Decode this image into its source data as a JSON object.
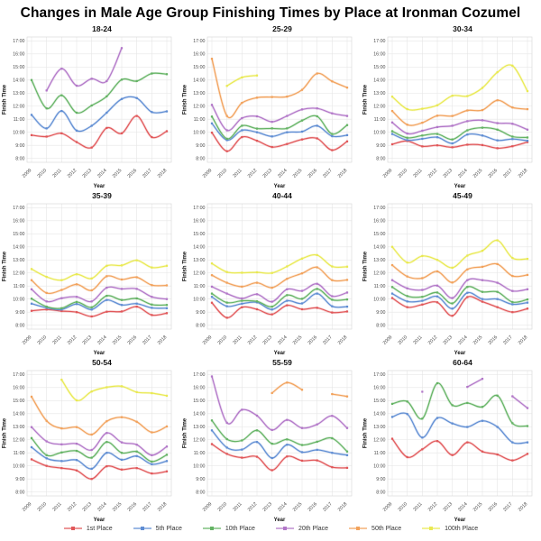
{
  "title": "Changes in Male Age Group Finishing Times by Place at Ironman Cozumel",
  "legend": [
    {
      "label": "1st Place",
      "color": "#e15759"
    },
    {
      "label": "5th Place",
      "color": "#5f8dd3"
    },
    {
      "label": "10th Place",
      "color": "#64b364"
    },
    {
      "label": "20th Place",
      "color": "#b277c8"
    },
    {
      "label": "50th Place",
      "color": "#f2a25c"
    },
    {
      "label": "100th Place",
      "color": "#e9e952"
    }
  ],
  "axes": {
    "xlabel": "Year",
    "ylabel": "Finish Time",
    "years": [
      2009,
      2010,
      2011,
      2012,
      2013,
      2014,
      2015,
      2016,
      2017,
      2018
    ],
    "ylim": [
      8,
      17
    ],
    "yticks": [
      "8:00",
      "9:00",
      "10:00",
      "11:00",
      "12:00",
      "13:00",
      "14:00",
      "15:00",
      "16:00",
      "17:00"
    ],
    "grid": "on",
    "legend_position": "bottom"
  },
  "chart_data": [
    {
      "type": "line",
      "title": "18-24",
      "xlabel": "Year",
      "ylabel": "Finish Time",
      "x": [
        2009,
        2010,
        2011,
        2012,
        2013,
        2014,
        2015,
        2016,
        2017,
        2018
      ],
      "ylim": [
        8,
        17
      ],
      "series": [
        {
          "name": "1st Place",
          "place": 0,
          "values": [
            9.78,
            9.67,
            9.92,
            9.25,
            8.83,
            10.33,
            9.92,
            11.25,
            9.63,
            10.08
          ]
        },
        {
          "name": "5th Place",
          "place": 1,
          "values": [
            11.33,
            10.3,
            11.63,
            10.13,
            10.5,
            11.5,
            12.55,
            12.62,
            11.55,
            11.6
          ]
        },
        {
          "name": "10th Place",
          "place": 2,
          "values": [
            14.0,
            11.83,
            12.83,
            11.5,
            12.05,
            12.75,
            14.03,
            13.92,
            14.5,
            14.45
          ]
        },
        {
          "name": "20th Place",
          "place": 3,
          "values": [
            null,
            13.2,
            14.87,
            13.57,
            14.1,
            13.92,
            16.45,
            null,
            null,
            null
          ]
        }
      ]
    },
    {
      "type": "line",
      "title": "25-29",
      "xlabel": "Year",
      "ylabel": "Finish Time",
      "x": [
        2009,
        2010,
        2011,
        2012,
        2013,
        2014,
        2015,
        2016,
        2017,
        2018
      ],
      "ylim": [
        8,
        17
      ],
      "series": [
        {
          "name": "1st Place",
          "place": 0,
          "values": [
            9.97,
            8.55,
            9.63,
            9.35,
            8.87,
            9.1,
            9.45,
            9.53,
            8.63,
            9.3
          ]
        },
        {
          "name": "5th Place",
          "place": 1,
          "values": [
            10.68,
            9.4,
            10.15,
            10.0,
            9.68,
            10.0,
            10.05,
            10.5,
            9.7,
            9.78
          ]
        },
        {
          "name": "10th Place",
          "place": 2,
          "values": [
            11.2,
            9.5,
            10.5,
            10.28,
            10.3,
            10.3,
            10.9,
            11.22,
            9.87,
            10.55
          ]
        },
        {
          "name": "20th Place",
          "place": 3,
          "values": [
            12.1,
            10.15,
            11.08,
            11.22,
            10.8,
            11.25,
            11.75,
            11.83,
            11.45,
            11.25
          ]
        },
        {
          "name": "50th Place",
          "place": 4,
          "values": [
            15.63,
            11.25,
            12.25,
            12.65,
            12.7,
            12.73,
            13.25,
            14.5,
            13.9,
            13.42
          ]
        },
        {
          "name": "100th Place",
          "place": 5,
          "values": [
            null,
            13.55,
            14.2,
            14.35,
            null,
            null,
            null,
            null,
            null,
            null
          ]
        }
      ]
    },
    {
      "type": "line",
      "title": "30-34",
      "xlabel": "Year",
      "ylabel": "Finish Time",
      "x": [
        2009,
        2010,
        2011,
        2012,
        2013,
        2014,
        2015,
        2016,
        2017,
        2018
      ],
      "ylim": [
        8,
        17
      ],
      "series": [
        {
          "name": "1st Place",
          "place": 0,
          "values": [
            9.08,
            9.33,
            8.92,
            9.0,
            8.85,
            9.05,
            9.02,
            8.78,
            8.93,
            9.25
          ]
        },
        {
          "name": "5th Place",
          "place": 1,
          "values": [
            9.87,
            9.4,
            9.5,
            9.62,
            9.15,
            9.83,
            9.75,
            9.38,
            9.48,
            9.35
          ]
        },
        {
          "name": "10th Place",
          "place": 2,
          "values": [
            10.08,
            9.58,
            9.75,
            9.87,
            9.45,
            10.15,
            10.35,
            10.2,
            9.67,
            9.6
          ]
        },
        {
          "name": "20th Place",
          "place": 3,
          "values": [
            10.75,
            9.9,
            10.12,
            10.4,
            10.5,
            10.85,
            10.92,
            10.7,
            10.65,
            10.2
          ]
        },
        {
          "name": "50th Place",
          "place": 4,
          "values": [
            11.63,
            10.58,
            10.73,
            11.27,
            11.25,
            11.67,
            11.7,
            12.45,
            11.9,
            11.77
          ]
        },
        {
          "name": "100th Place",
          "place": 5,
          "values": [
            12.73,
            11.77,
            11.8,
            12.07,
            12.8,
            12.77,
            13.4,
            14.6,
            15.1,
            13.15
          ]
        }
      ]
    },
    {
      "type": "line",
      "title": "35-39",
      "xlabel": "Year",
      "ylabel": "Finish Time",
      "x": [
        2009,
        2010,
        2011,
        2012,
        2013,
        2014,
        2015,
        2016,
        2017,
        2018
      ],
      "ylim": [
        8,
        17
      ],
      "series": [
        {
          "name": "1st Place",
          "place": 0,
          "values": [
            9.1,
            9.2,
            9.08,
            9.0,
            8.67,
            9.03,
            9.05,
            9.42,
            8.78,
            8.92
          ]
        },
        {
          "name": "5th Place",
          "place": 1,
          "values": [
            9.65,
            9.33,
            9.2,
            9.62,
            9.2,
            9.93,
            9.55,
            9.65,
            9.33,
            9.3
          ]
        },
        {
          "name": "10th Place",
          "place": 2,
          "values": [
            10.03,
            9.42,
            9.3,
            9.78,
            9.37,
            10.25,
            9.93,
            10.05,
            9.58,
            9.55
          ]
        },
        {
          "name": "20th Place",
          "place": 3,
          "values": [
            10.75,
            9.82,
            10.07,
            10.17,
            9.82,
            10.87,
            10.78,
            10.78,
            10.17,
            10.0
          ]
        },
        {
          "name": "50th Place",
          "place": 4,
          "values": [
            11.45,
            10.47,
            10.7,
            11.13,
            10.67,
            11.75,
            11.5,
            11.67,
            11.07,
            11.05
          ]
        },
        {
          "name": "100th Place",
          "place": 5,
          "values": [
            12.3,
            11.7,
            11.45,
            11.9,
            11.58,
            12.55,
            12.58,
            12.97,
            12.42,
            12.55
          ]
        }
      ]
    },
    {
      "type": "line",
      "title": "40-44",
      "xlabel": "Year",
      "ylabel": "Finish Time",
      "x": [
        2009,
        2010,
        2011,
        2012,
        2013,
        2014,
        2015,
        2016,
        2017,
        2018
      ],
      "ylim": [
        8,
        17
      ],
      "series": [
        {
          "name": "1st Place",
          "place": 0,
          "values": [
            9.72,
            8.57,
            9.37,
            9.22,
            8.83,
            9.52,
            9.22,
            9.33,
            8.97,
            9.05
          ]
        },
        {
          "name": "5th Place",
          "place": 1,
          "values": [
            10.17,
            9.45,
            9.65,
            9.75,
            9.2,
            9.87,
            9.67,
            10.42,
            9.45,
            9.42
          ]
        },
        {
          "name": "10th Place",
          "place": 2,
          "values": [
            10.42,
            9.73,
            9.87,
            9.83,
            9.42,
            10.3,
            10.02,
            10.78,
            9.95,
            9.97
          ]
        },
        {
          "name": "20th Place",
          "place": 3,
          "values": [
            10.95,
            10.42,
            10.05,
            10.37,
            9.8,
            10.75,
            10.63,
            11.17,
            10.22,
            10.5
          ]
        },
        {
          "name": "50th Place",
          "place": 4,
          "values": [
            11.83,
            11.25,
            10.95,
            11.25,
            10.87,
            11.55,
            11.97,
            12.43,
            11.45,
            11.47
          ]
        },
        {
          "name": "100th Place",
          "place": 5,
          "values": [
            12.73,
            12.07,
            12.02,
            12.05,
            12.0,
            12.5,
            13.1,
            13.37,
            12.5,
            12.48
          ]
        }
      ]
    },
    {
      "type": "line",
      "title": "45-49",
      "xlabel": "Year",
      "ylabel": "Finish Time",
      "x": [
        2009,
        2010,
        2011,
        2012,
        2013,
        2014,
        2015,
        2016,
        2017,
        2018
      ],
      "ylim": [
        8,
        17
      ],
      "series": [
        {
          "name": "1st Place",
          "place": 0,
          "values": [
            10.08,
            9.38,
            9.58,
            9.75,
            8.72,
            10.15,
            9.8,
            9.38,
            9.0,
            9.27
          ]
        },
        {
          "name": "5th Place",
          "place": 1,
          "values": [
            10.42,
            9.82,
            9.87,
            10.2,
            9.27,
            10.48,
            10.0,
            10.0,
            9.6,
            9.73
          ]
        },
        {
          "name": "10th Place",
          "place": 2,
          "values": [
            10.92,
            10.23,
            10.17,
            10.5,
            9.67,
            10.93,
            10.55,
            10.55,
            9.77,
            9.97
          ]
        },
        {
          "name": "20th Place",
          "place": 3,
          "values": [
            11.45,
            10.82,
            10.7,
            11.03,
            10.08,
            11.45,
            11.45,
            11.25,
            10.62,
            10.75
          ]
        },
        {
          "name": "50th Place",
          "place": 4,
          "values": [
            12.6,
            11.73,
            11.6,
            12.12,
            11.27,
            12.27,
            12.47,
            12.68,
            11.77,
            11.85
          ]
        },
        {
          "name": "100th Place",
          "place": 5,
          "values": [
            14.0,
            12.8,
            13.3,
            13.0,
            12.4,
            13.33,
            13.7,
            14.5,
            13.15,
            13.08
          ]
        }
      ]
    },
    {
      "type": "line",
      "title": "50-54",
      "xlabel": "Year",
      "ylabel": "Finish Time",
      "x": [
        2009,
        2010,
        2011,
        2012,
        2013,
        2014,
        2015,
        2016,
        2017,
        2018
      ],
      "ylim": [
        8,
        17
      ],
      "series": [
        {
          "name": "1st Place",
          "place": 0,
          "values": [
            10.5,
            10.0,
            9.83,
            9.65,
            9.0,
            9.97,
            9.72,
            9.83,
            9.42,
            9.58
          ]
        },
        {
          "name": "5th Place",
          "place": 1,
          "values": [
            11.43,
            10.58,
            10.37,
            10.45,
            9.78,
            11.0,
            10.47,
            10.75,
            10.13,
            10.37
          ]
        },
        {
          "name": "10th Place",
          "place": 2,
          "values": [
            12.13,
            10.82,
            11.03,
            11.15,
            10.63,
            11.83,
            11.0,
            11.1,
            10.33,
            10.85
          ]
        },
        {
          "name": "20th Place",
          "place": 3,
          "values": [
            12.97,
            11.88,
            11.65,
            11.7,
            11.22,
            12.52,
            11.8,
            11.62,
            10.82,
            11.48
          ]
        },
        {
          "name": "50th Place",
          "place": 4,
          "values": [
            15.3,
            13.45,
            12.87,
            12.97,
            12.4,
            13.42,
            13.73,
            13.38,
            12.57,
            13.02
          ]
        },
        {
          "name": "100th Place",
          "place": 5,
          "values": [
            null,
            null,
            16.6,
            15.02,
            15.7,
            16.02,
            16.1,
            15.65,
            15.57,
            15.37
          ]
        }
      ]
    },
    {
      "type": "line",
      "title": "55-59",
      "xlabel": "Year",
      "ylabel": "Finish Time",
      "x": [
        2009,
        2010,
        2011,
        2012,
        2013,
        2014,
        2015,
        2016,
        2017,
        2018
      ],
      "ylim": [
        8,
        17
      ],
      "series": [
        {
          "name": "1st Place",
          "place": 0,
          "values": [
            11.67,
            10.92,
            10.63,
            10.7,
            9.67,
            10.72,
            10.4,
            10.42,
            9.9,
            9.85
          ]
        },
        {
          "name": "5th Place",
          "place": 1,
          "values": [
            12.72,
            11.4,
            11.25,
            11.83,
            10.6,
            11.62,
            11.05,
            11.23,
            11.0,
            10.82
          ]
        },
        {
          "name": "10th Place",
          "place": 2,
          "values": [
            13.48,
            12.05,
            11.95,
            12.72,
            11.7,
            12.03,
            11.6,
            11.85,
            12.12,
            11.1
          ]
        },
        {
          "name": "20th Place",
          "place": 3,
          "values": [
            16.85,
            13.3,
            14.3,
            13.85,
            12.75,
            13.52,
            12.9,
            13.18,
            13.83,
            12.9
          ]
        },
        {
          "name": "50th Place",
          "place": 4,
          "values": [
            null,
            null,
            null,
            null,
            15.58,
            16.38,
            15.83,
            null,
            15.5,
            15.32
          ]
        }
      ]
    },
    {
      "type": "line",
      "title": "60-64",
      "xlabel": "Year",
      "ylabel": "Finish Time",
      "x": [
        2009,
        2010,
        2011,
        2012,
        2013,
        2014,
        2015,
        2016,
        2017,
        2018
      ],
      "ylim": [
        8,
        17
      ],
      "series": [
        {
          "name": "1st Place",
          "place": 0,
          "values": [
            12.08,
            10.67,
            11.27,
            11.9,
            10.83,
            11.8,
            11.1,
            10.87,
            10.42,
            10.92
          ]
        },
        {
          "name": "5th Place",
          "place": 1,
          "values": [
            13.75,
            13.97,
            12.17,
            13.67,
            13.25,
            12.98,
            13.45,
            12.98,
            11.8,
            11.8
          ]
        },
        {
          "name": "10th Place",
          "place": 2,
          "values": [
            14.75,
            14.93,
            13.62,
            16.33,
            14.65,
            14.82,
            14.52,
            15.38,
            13.27,
            13.05
          ]
        },
        {
          "name": "20th Place",
          "place": 3,
          "values": [
            null,
            null,
            15.68,
            null,
            null,
            16.05,
            16.67,
            null,
            15.33,
            14.43
          ]
        }
      ]
    }
  ]
}
